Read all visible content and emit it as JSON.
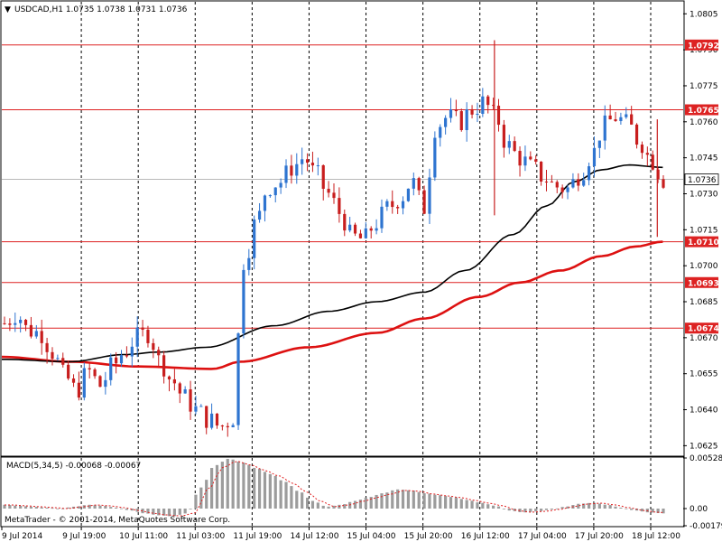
{
  "header": {
    "symbol_info": "USDCAD,H1  1.0735 1.0738 1.0731 1.0736",
    "current_price": "1.0736"
  },
  "colors": {
    "bull": "#2e74d0",
    "bear": "#c81e1e",
    "level_line": "#dd2222",
    "ma_fast": "#000000",
    "ma_slow": "#dd1111",
    "macd_hist": "#9c9c9c",
    "macd_signal": "#e02020",
    "grid": "#000000"
  },
  "watermark": "MetaTrader - © 2001-2014, MetaQuotes Software Corp.",
  "chart_data": {
    "type": "candlestick",
    "price_axis": {
      "ylim": [
        1.0621,
        1.081
      ],
      "ticks": [
        "1.0805",
        "1.0790",
        "1.0775",
        "1.0760",
        "1.0745",
        "1.0730",
        "1.0715",
        "1.0700",
        "1.0685",
        "1.0670",
        "1.0655",
        "1.0640",
        "1.0625"
      ]
    },
    "time_labels": [
      "9 Jul 2014",
      "9 Jul 19:00",
      "10 Jul 11:00",
      "11 Jul 03:00",
      "11 Jul 19:00",
      "14 Jul 12:00",
      "15 Jul 04:00",
      "15 Jul 20:00",
      "16 Jul 12:00",
      "17 Jul 04:00",
      "17 Jul 20:00",
      "18 Jul 12:00"
    ],
    "levels": [
      {
        "label": "1.0792",
        "value": 1.0792
      },
      {
        "label": "1.0765",
        "value": 1.0765
      },
      {
        "label": "1.0710",
        "value": 1.071
      },
      {
        "label": "1.0693",
        "value": 1.0693
      },
      {
        "label": "1.0674",
        "value": 1.0674
      }
    ],
    "close_keypoints": [
      1.0676,
      1.068,
      1.0673,
      1.0672,
      1.0664,
      1.0654,
      1.0648,
      1.0656,
      1.065,
      1.0658,
      1.0664,
      1.067,
      1.0672,
      1.066,
      1.0652,
      1.0645,
      1.064,
      1.0636,
      1.0633,
      1.0636,
      1.0702,
      1.0718,
      1.0733,
      1.0735,
      1.0741,
      1.0745,
      1.0738,
      1.073,
      1.0722,
      1.0712,
      1.0711,
      1.0718,
      1.0724,
      1.0728,
      1.0735,
      1.0724,
      1.0758,
      1.0762,
      1.076,
      1.0765,
      1.0768,
      1.0762,
      1.075,
      1.0745,
      1.0741,
      1.0737,
      1.0733,
      1.0732,
      1.0738,
      1.0746,
      1.0758,
      1.0762,
      1.0759,
      1.0752,
      1.0744,
      1.0736
    ],
    "ma_fast": {
      "x_pct": [
        0,
        10,
        18,
        23,
        30,
        40,
        48,
        55,
        62,
        68,
        75,
        80,
        84,
        88,
        92,
        97
      ],
      "y": [
        1.0661,
        1.066,
        1.0663,
        1.0664,
        1.0666,
        1.0675,
        1.0681,
        1.0685,
        1.0689,
        1.0698,
        1.0713,
        1.0725,
        1.0735,
        1.074,
        1.0742,
        1.0741
      ]
    },
    "ma_slow": {
      "x_pct": [
        0,
        10,
        20,
        31,
        35,
        45,
        55,
        62,
        70,
        76,
        82,
        88,
        93,
        97
      ],
      "y": [
        1.0662,
        1.066,
        1.0658,
        1.0657,
        1.066,
        1.0666,
        1.0672,
        1.0678,
        1.0687,
        1.0693,
        1.0698,
        1.0704,
        1.0708,
        1.071
      ]
    },
    "spikes": [
      {
        "x_pct": 72.3,
        "high": 1.0794,
        "low": 1.0721
      },
      {
        "x_pct": 96.2,
        "high": 1.0761,
        "low": 1.0712
      }
    ],
    "macd": {
      "label": "MACD(5,34,5) -0.00068 -0.00067",
      "ylim": [
        -0.00179,
        0.00528
      ],
      "ticks": [
        "0.00528",
        "0.00",
        "-0.00179"
      ],
      "hist_keypoints": [
        0.0004,
        0.0003,
        0.0002,
        0.0001,
        0.0,
        0.0002,
        0.0004,
        0.0003,
        0.0001,
        -0.0002,
        -0.0005,
        -0.0007,
        -0.0008,
        -0.0005,
        0.0022,
        0.0045,
        0.0052,
        0.0048,
        0.0042,
        0.0036,
        0.0028,
        0.0018,
        0.0008,
        0.0002,
        0.0004,
        0.0008,
        0.0012,
        0.0016,
        0.002,
        0.0019,
        0.0016,
        0.0014,
        0.0012,
        0.0009,
        0.0006,
        0.0003,
        -0.0002,
        -0.0004,
        -0.0003,
        -0.0001,
        0.0002,
        0.0005,
        0.0006,
        0.0004,
        0.0001,
        -0.0002,
        -0.0004,
        -0.0005
      ]
    }
  }
}
